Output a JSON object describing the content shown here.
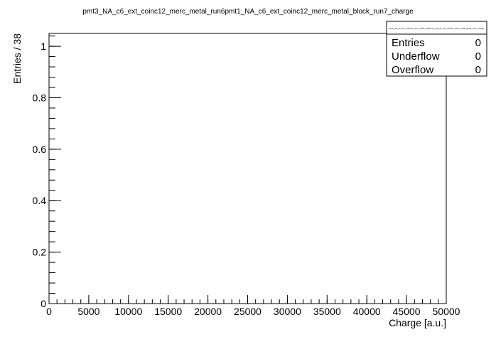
{
  "chart_data": {
    "type": "bar",
    "title": "pmt3_NA_c6_ext_coinc12_merc_metal_run6pmt1_NA_c6_ext_coinc12_merc_metal_block_run7_charge",
    "xlabel": "Charge [a.u.]",
    "ylabel": "Entries / 38",
    "xlim": [
      0,
      50000
    ],
    "ylim": [
      0,
      1.05
    ],
    "x_ticks": [
      "0",
      "5000",
      "10000",
      "15000",
      "20000",
      "25000",
      "30000",
      "35000",
      "40000",
      "45000",
      "50000"
    ],
    "x_tick_values": [
      0,
      5000,
      10000,
      15000,
      20000,
      25000,
      30000,
      35000,
      40000,
      45000,
      50000
    ],
    "y_ticks": [
      "0",
      "0.2",
      "0.4",
      "0.6",
      "0.8",
      "1"
    ],
    "y_tick_values": [
      0,
      0.2,
      0.4,
      0.6,
      0.8,
      1
    ],
    "bins": [],
    "values": [],
    "grid": false,
    "stats_box": {
      "header": "pmt3_NA_c6_ext_coinc12_merc_metal_run6pmt1_NA_c6_ext_coinc12_merc_metal_block_run7_charge",
      "rows": [
        {
          "label": "Entries",
          "value": "0"
        },
        {
          "label": "Underflow",
          "value": "0"
        },
        {
          "label": "Overflow",
          "value": "0"
        }
      ],
      "placement": "top-right"
    }
  }
}
